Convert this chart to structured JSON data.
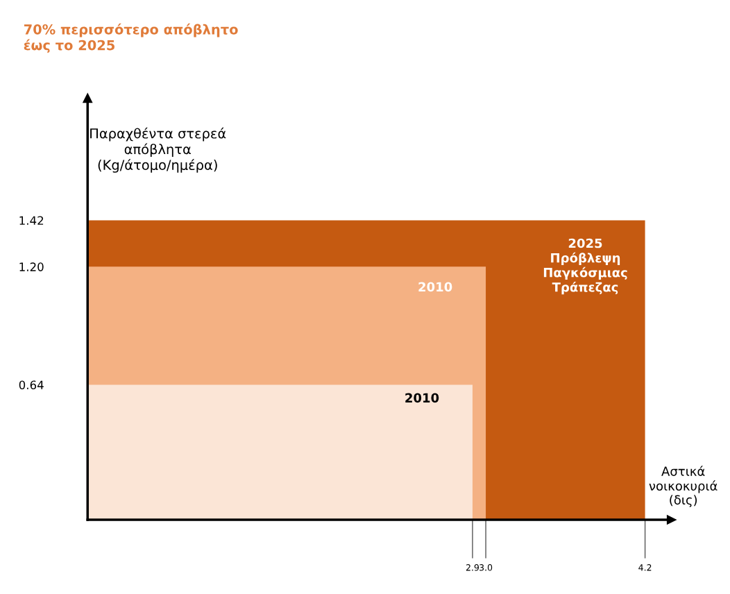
{
  "chart_data": {
    "type": "area",
    "title": "70% περισσότερο απόβλητο\nέως το 2025",
    "ylabel": "Παραχθέντα στερεά\nαπόβλητα\n(Kg/άτομο/ημέρα)",
    "xlabel": "Αστικά\nνοικοκυριά\n(δις)",
    "series": [
      {
        "name": "2025\nΠρόβλεψη\nΠαγκόσμιας\nΤράπεζας",
        "color": "#c55a11",
        "x": [
          0,
          4.2
        ],
        "values": [
          1.42,
          1.42
        ]
      },
      {
        "name": "2010",
        "color": "#f4b183",
        "x": [
          0,
          3.0
        ],
        "values": [
          1.2,
          1.2
        ]
      },
      {
        "name": "2010",
        "color": "#fbe5d6",
        "x": [
          0,
          2.9
        ],
        "values": [
          0.64,
          0.64
        ]
      }
    ],
    "xlim": [
      0,
      4.4
    ],
    "ylim": [
      0,
      2.0
    ],
    "xticks": [
      2.9,
      {
        "value": 3.0,
        "label": "3.0"
      },
      4.2
    ],
    "yticks": [
      0.64,
      {
        "value": 1.2,
        "label": "1.20"
      },
      1.42
    ],
    "grid": false,
    "legend": false
  }
}
